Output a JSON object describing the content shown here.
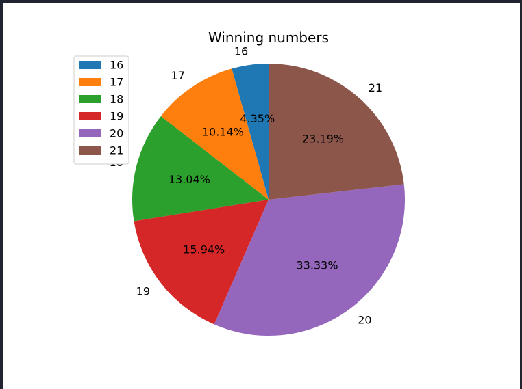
{
  "chart_data": {
    "type": "pie",
    "title": "Winning numbers",
    "categories": [
      "16",
      "17",
      "18",
      "19",
      "20",
      "21"
    ],
    "values": [
      4.35,
      10.14,
      13.04,
      15.94,
      33.33,
      23.19
    ],
    "value_labels": [
      "4.35%",
      "10.14%",
      "13.04%",
      "15.94%",
      "33.33%",
      "23.19%"
    ],
    "colors": [
      "#1f77b4",
      "#ff7f0e",
      "#2ca02c",
      "#d62728",
      "#9467bd",
      "#8c564b"
    ],
    "start_angle_deg": 90,
    "direction": "counterclockwise",
    "legend": {
      "placement": "top-left",
      "entries": [
        "16",
        "17",
        "18",
        "19",
        "20",
        "21"
      ]
    }
  }
}
